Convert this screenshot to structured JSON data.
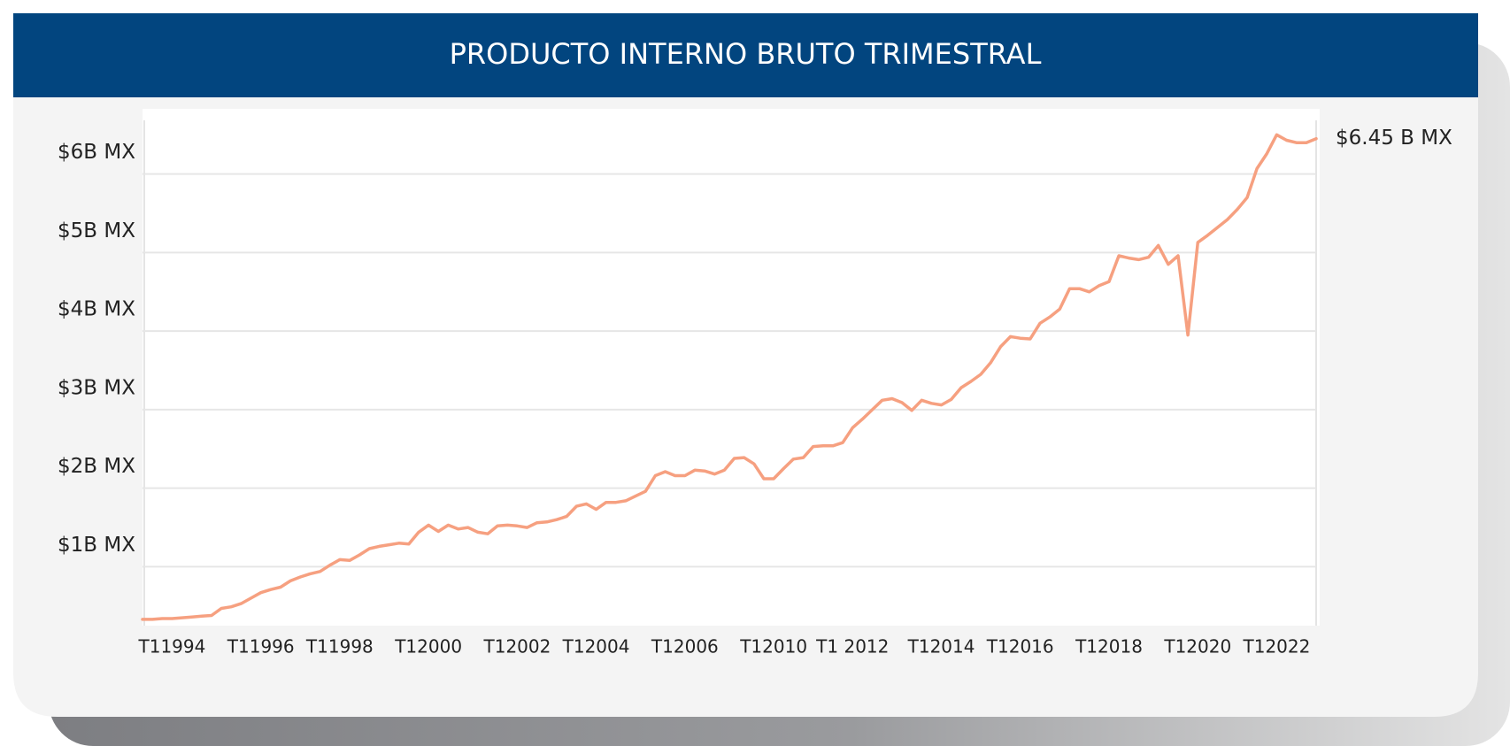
{
  "chart_data": {
    "type": "line",
    "title": "PRODUCTO INTERNO BRUTO TRIMESTRAL",
    "categories": [
      null,
      null,
      null,
      "T11994",
      null,
      null,
      null,
      null,
      null,
      null,
      null,
      null,
      "T11996",
      null,
      null,
      null,
      null,
      null,
      null,
      null,
      "T11998",
      null,
      null,
      null,
      null,
      null,
      null,
      null,
      null,
      "T12000",
      null,
      null,
      null,
      null,
      null,
      null,
      null,
      null,
      "T12002",
      null,
      null,
      null,
      null,
      null,
      null,
      null,
      "T12004",
      null,
      null,
      null,
      null,
      null,
      null,
      null,
      null,
      "T12006",
      null,
      null,
      null,
      null,
      null,
      null,
      null,
      null,
      "T12010",
      null,
      null,
      null,
      null,
      null,
      null,
      null,
      "T1 2012",
      null,
      null,
      null,
      null,
      null,
      null,
      null,
      null,
      "T12014",
      null,
      null,
      null,
      null,
      null,
      null,
      null,
      "T12016",
      null,
      null,
      null,
      null,
      null,
      null,
      null,
      null,
      "T12018",
      null,
      null,
      null,
      null,
      null,
      null,
      null,
      null,
      "T12020",
      null,
      null,
      null,
      null,
      null,
      null,
      null,
      "T12022",
      null,
      null,
      null,
      null
    ],
    "values": [
      0.33,
      0.33,
      0.34,
      0.34,
      0.35,
      0.36,
      0.37,
      0.38,
      0.47,
      0.49,
      0.53,
      0.6,
      0.67,
      0.71,
      0.74,
      0.82,
      0.87,
      0.91,
      0.94,
      1.02,
      1.09,
      1.08,
      1.15,
      1.23,
      1.26,
      1.28,
      1.3,
      1.29,
      1.44,
      1.53,
      1.45,
      1.53,
      1.48,
      1.5,
      1.44,
      1.42,
      1.52,
      1.53,
      1.52,
      1.5,
      1.56,
      1.57,
      1.6,
      1.64,
      1.77,
      1.8,
      1.73,
      1.82,
      1.82,
      1.84,
      1.9,
      1.96,
      2.16,
      2.21,
      2.16,
      2.16,
      2.23,
      2.22,
      2.18,
      2.23,
      2.38,
      2.39,
      2.31,
      2.12,
      2.12,
      2.25,
      2.37,
      2.39,
      2.53,
      2.54,
      2.54,
      2.58,
      2.77,
      2.88,
      3.0,
      3.12,
      3.14,
      3.09,
      2.99,
      3.12,
      3.08,
      3.06,
      3.13,
      3.28,
      3.36,
      3.45,
      3.6,
      3.8,
      3.93,
      3.91,
      3.9,
      4.1,
      4.18,
      4.28,
      4.54,
      4.54,
      4.5,
      4.58,
      4.63,
      4.96,
      4.93,
      4.91,
      4.94,
      5.09,
      4.85,
      4.96,
      3.95,
      5.13,
      5.22,
      5.32,
      5.42,
      5.55,
      5.7,
      6.07,
      6.26,
      6.5,
      6.43,
      6.4,
      6.4,
      6.45
    ],
    "value_labels": [
      null,
      null,
      null,
      null,
      null,
      null,
      null,
      null,
      null,
      null,
      null,
      null,
      null,
      null,
      null,
      null,
      null,
      null,
      null,
      null,
      null,
      null,
      null,
      null,
      null,
      null,
      null,
      null,
      null,
      null,
      null,
      null,
      null,
      null,
      null,
      null,
      null,
      null,
      null,
      null,
      null,
      null,
      null,
      null,
      null,
      null,
      null,
      null,
      null,
      null,
      null,
      null,
      null,
      null,
      null,
      null,
      null,
      null,
      null,
      null,
      null,
      null,
      null,
      null,
      null,
      null,
      null,
      null,
      null,
      null,
      null,
      null,
      null,
      null,
      null,
      null,
      null,
      null,
      null,
      null,
      null,
      null,
      null,
      null,
      null,
      null,
      null,
      null,
      null,
      null,
      null,
      null,
      null,
      null,
      null,
      null,
      null,
      null,
      null,
      null,
      null,
      null,
      null,
      null,
      null,
      null,
      null,
      null,
      null,
      null,
      null,
      null,
      null,
      null,
      null,
      null,
      null,
      null,
      null,
      "$6.45 B MX"
    ],
    "color": "#f6a080",
    "ylim": [
      0.25,
      6.83
    ],
    "yticks": [
      {
        "value": 1,
        "label": "$1B MX"
      },
      {
        "value": 2,
        "label": "$2B MX"
      },
      {
        "value": 3,
        "label": "$3B MX"
      },
      {
        "value": 4,
        "label": "$4B MX"
      },
      {
        "value": 5,
        "label": "$5B MX"
      },
      {
        "value": 6,
        "label": "$6B MX"
      }
    ],
    "grid": true
  }
}
